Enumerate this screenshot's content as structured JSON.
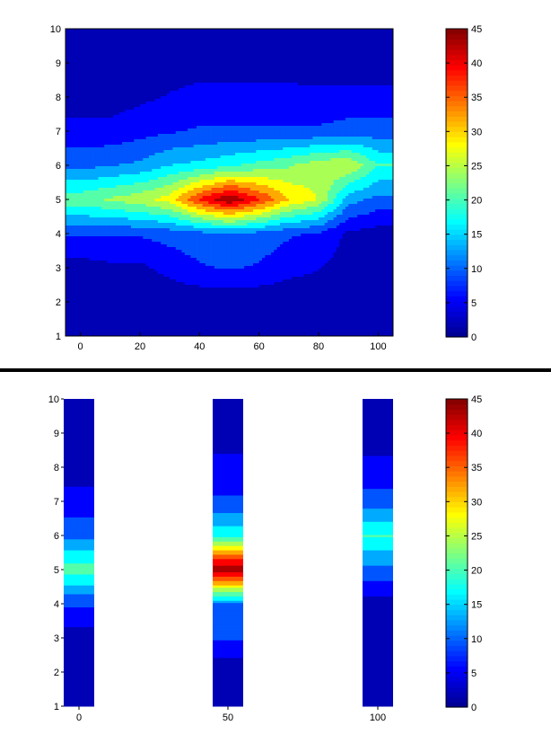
{
  "colormap": {
    "name": "jet",
    "stops": [
      "#00008f",
      "#0000ff",
      "#0080ff",
      "#00ffff",
      "#80ff80",
      "#ffff00",
      "#ff8000",
      "#ff0000",
      "#800000"
    ]
  },
  "chart_data": [
    {
      "type": "heatmap",
      "subtype": "filled-contour",
      "title": "",
      "xlabel": "",
      "ylabel": "",
      "x": [
        0,
        10,
        20,
        30,
        40,
        50,
        60,
        70,
        80,
        90,
        100
      ],
      "y": [
        1,
        2,
        3,
        4,
        5,
        6,
        7,
        8,
        9,
        10
      ],
      "xlim": [
        -5,
        105
      ],
      "ylim": [
        1,
        10
      ],
      "clim": [
        0,
        45
      ],
      "x_ticks": [
        "0",
        "20",
        "40",
        "60",
        "80",
        "100"
      ],
      "y_ticks": [
        "1",
        "2",
        "3",
        "4",
        "5",
        "6",
        "7",
        "8",
        "9",
        "10"
      ],
      "colorbar_ticks": [
        "0",
        "5",
        "10",
        "15",
        "20",
        "25",
        "30",
        "35",
        "40",
        "45"
      ],
      "z": [
        [
          1,
          1,
          1,
          1,
          1,
          1,
          1,
          1,
          1,
          1,
          1
        ],
        [
          1,
          1,
          1,
          1,
          1,
          1,
          1,
          1,
          1,
          1,
          1
        ],
        [
          2,
          3,
          3,
          5,
          7,
          8,
          7,
          5,
          4,
          2,
          1
        ],
        [
          8,
          8,
          8,
          9,
          10,
          11,
          10,
          8,
          7,
          3,
          2
        ],
        [
          21,
          23,
          25,
          28,
          38,
          45,
          38,
          30,
          26,
          13,
          10
        ],
        [
          10,
          11,
          12,
          15,
          16,
          18,
          20,
          22,
          25,
          26,
          19
        ],
        [
          5,
          5,
          6,
          7,
          8,
          8,
          8,
          8,
          8,
          9,
          9
        ],
        [
          2,
          2,
          3,
          4,
          5,
          5,
          5,
          5,
          5,
          5,
          5
        ],
        [
          1,
          1,
          1,
          2,
          2,
          2,
          2,
          2,
          1,
          1,
          1
        ],
        [
          1,
          1,
          1,
          1,
          1,
          1,
          1,
          1,
          1,
          1,
          1
        ]
      ]
    },
    {
      "type": "heatmap",
      "subtype": "filled-contour-slices",
      "title": "",
      "xlabel": "",
      "ylabel": "",
      "slice_x": [
        0,
        50,
        100
      ],
      "slice_labels": [
        "0",
        "50",
        "100"
      ],
      "y": [
        1,
        2,
        3,
        4,
        5,
        6,
        7,
        8,
        9,
        10
      ],
      "ylim": [
        1,
        10
      ],
      "clim": [
        0,
        45
      ],
      "y_ticks": [
        "1",
        "2",
        "3",
        "4",
        "5",
        "6",
        "7",
        "8",
        "9",
        "10"
      ],
      "colorbar_ticks": [
        "0",
        "5",
        "10",
        "15",
        "20",
        "25",
        "30",
        "35",
        "40",
        "45"
      ],
      "z": [
        [
          1,
          1,
          1
        ],
        [
          1,
          1,
          1
        ],
        [
          2,
          8,
          1
        ],
        [
          8,
          11,
          2
        ],
        [
          21,
          45,
          10
        ],
        [
          10,
          18,
          19
        ],
        [
          5,
          8,
          9
        ],
        [
          2,
          5,
          5
        ],
        [
          1,
          2,
          1
        ],
        [
          1,
          1,
          1
        ]
      ]
    }
  ]
}
